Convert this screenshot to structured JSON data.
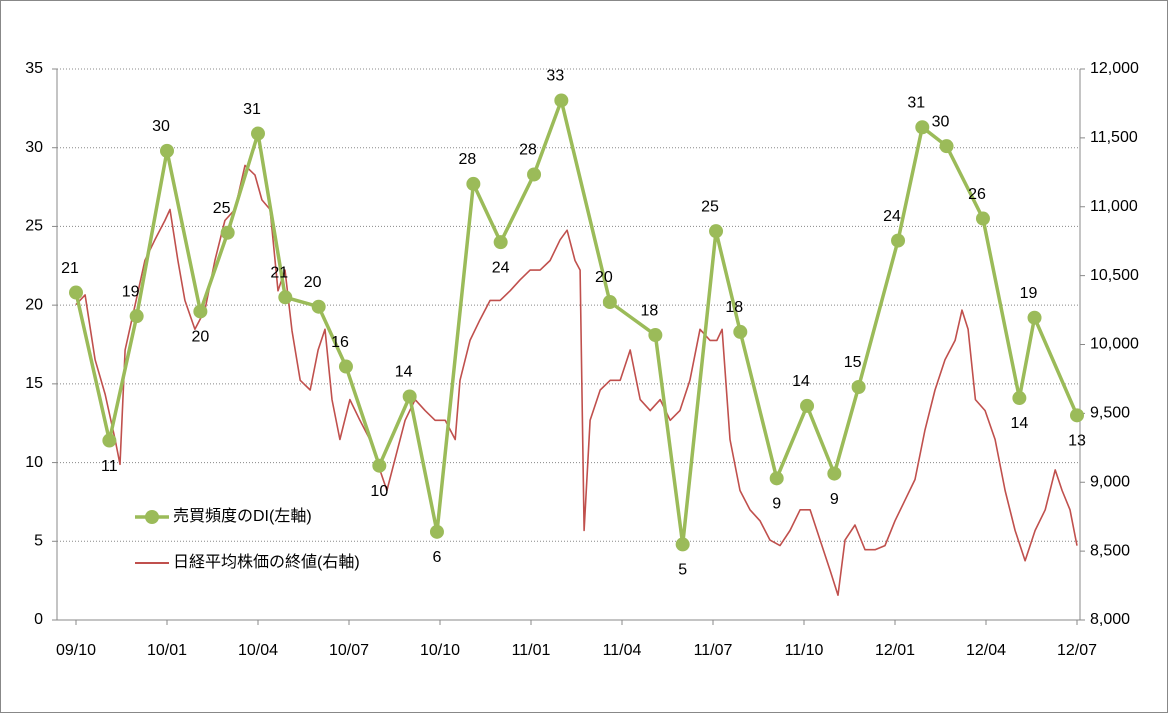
{
  "chart_data": {
    "type": "line",
    "xlim": [
      0,
      33
    ],
    "xticks": [
      {
        "value": 0,
        "label": "09/10"
      },
      {
        "value": 3,
        "label": "10/01"
      },
      {
        "value": 6,
        "label": "10/04"
      },
      {
        "value": 9,
        "label": "10/07"
      },
      {
        "value": 12,
        "label": "10/10"
      },
      {
        "value": 15,
        "label": "11/01"
      },
      {
        "value": 18,
        "label": "11/04"
      },
      {
        "value": 21,
        "label": "11/07"
      },
      {
        "value": 24,
        "label": "11/10"
      },
      {
        "value": 27,
        "label": "12/01"
      },
      {
        "value": 30,
        "label": "12/04"
      },
      {
        "value": 33,
        "label": "12/07"
      }
    ],
    "ylim": [
      0,
      35
    ],
    "yticks": [
      0,
      5,
      10,
      15,
      20,
      25,
      30,
      35
    ],
    "y2lim": [
      8000,
      12000
    ],
    "y2ticks": [
      {
        "value": 8000,
        "label": "8,000"
      },
      {
        "value": 8500,
        "label": "8,500"
      },
      {
        "value": 9000,
        "label": "9,000"
      },
      {
        "value": 9500,
        "label": "9,500"
      },
      {
        "value": 10000,
        "label": "10,000"
      },
      {
        "value": 10500,
        "label": "10,500"
      },
      {
        "value": 11000,
        "label": "11,000"
      },
      {
        "value": 11500,
        "label": "11,500"
      },
      {
        "value": 12000,
        "label": "12,000"
      }
    ],
    "grid": true,
    "legend": "lower left",
    "series": [
      {
        "name": "売買頻度のDI(左軸)",
        "color": "#9bbb59",
        "x": [
          0,
          1.1,
          2.0,
          3.0,
          4.1,
          5.0,
          6.0,
          6.9,
          8.0,
          8.9,
          10.0,
          11.0,
          11.9,
          13.1,
          14.0,
          15.1,
          16.0,
          17.6,
          19.1,
          20.0,
          21.1,
          21.9,
          23.1,
          24.1,
          25.0,
          25.8,
          27.1,
          27.9,
          28.7,
          29.9,
          31.1,
          31.6,
          33
        ],
        "values": [
          20.8,
          11.4,
          19.3,
          29.8,
          19.6,
          24.6,
          30.9,
          20.5,
          19.9,
          16.1,
          9.8,
          14.2,
          5.6,
          27.7,
          24.0,
          28.3,
          33.0,
          20.2,
          18.1,
          4.8,
          24.7,
          18.3,
          9.0,
          13.6,
          9.3,
          14.8,
          24.1,
          31.3,
          30.1,
          25.5,
          14.1,
          19.2,
          13.0
        ],
        "value_labels": [
          "21",
          "11",
          "19",
          "30",
          "20",
          "25",
          "31",
          "21",
          "20",
          "16",
          "10",
          "14",
          "6",
          "28",
          "24",
          "28",
          "33",
          "20",
          "18",
          "5",
          "25",
          "18",
          "9",
          "14",
          "9",
          "15",
          "24",
          "31",
          "30",
          "26",
          "14",
          "19",
          "13"
        ]
      },
      {
        "name": "日経平均株価の終値(右軸)",
        "color": "#c0504d",
        "axis": "y2",
        "x": [
          0,
          0.3,
          0.63,
          0.96,
          1.29,
          1.45,
          1.62,
          1.95,
          2.27,
          2.6,
          2.93,
          3.1,
          3.36,
          3.59,
          3.92,
          4.25,
          4.58,
          4.91,
          5.24,
          5.57,
          5.9,
          6.13,
          6.4,
          6.66,
          6.89,
          7.12,
          7.39,
          7.72,
          7.98,
          8.21,
          8.44,
          8.7,
          9.03,
          9.36,
          9.69,
          10.02,
          10.25,
          10.52,
          10.85,
          11.18,
          11.51,
          11.84,
          12.17,
          12.5,
          12.66,
          12.99,
          13.32,
          13.65,
          13.98,
          14.31,
          14.64,
          14.97,
          15.3,
          15.63,
          15.96,
          16.19,
          16.45,
          16.62,
          16.75,
          16.95,
          17.28,
          17.61,
          17.94,
          18.27,
          18.6,
          18.93,
          19.26,
          19.59,
          19.91,
          20.24,
          20.57,
          20.9,
          21.13,
          21.3,
          21.56,
          21.89,
          22.22,
          22.55,
          22.88,
          23.21,
          23.54,
          23.87,
          24.2,
          24.53,
          24.86,
          25.12,
          25.35,
          25.68,
          26.01,
          26.34,
          26.67,
          27.0,
          27.33,
          27.66,
          27.99,
          28.32,
          28.65,
          28.98,
          29.21,
          29.41,
          29.65,
          29.97,
          30.3,
          30.63,
          30.96,
          31.29,
          31.62,
          31.95,
          32.28,
          32.51,
          32.77,
          33.0
        ],
        "values": [
          10290,
          10360,
          9890,
          9640,
          9310,
          9130,
          9960,
          10290,
          10610,
          10760,
          10900,
          10980,
          10610,
          10320,
          10110,
          10250,
          10610,
          10900,
          10980,
          11300,
          11230,
          11050,
          10980,
          10390,
          10540,
          10100,
          9740,
          9670,
          9960,
          10110,
          9600,
          9310,
          9600,
          9450,
          9310,
          9090,
          8940,
          9170,
          9450,
          9600,
          9520,
          9450,
          9450,
          9310,
          9740,
          10030,
          10180,
          10320,
          10320,
          10390,
          10470,
          10540,
          10540,
          10610,
          10760,
          10830,
          10610,
          10540,
          8650,
          9450,
          9670,
          9740,
          9740,
          9960,
          9600,
          9520,
          9600,
          9450,
          9520,
          9740,
          10110,
          10030,
          10030,
          10110,
          9310,
          8940,
          8800,
          8720,
          8580,
          8540,
          8650,
          8800,
          8800,
          8580,
          8360,
          8180,
          8580,
          8690,
          8510,
          8510,
          8540,
          8720,
          8870,
          9020,
          9380,
          9670,
          9890,
          10030,
          10250,
          10110,
          9600,
          9520,
          9310,
          8940,
          8650,
          8430,
          8650,
          8800,
          9090,
          8940,
          8800,
          8540
        ]
      }
    ]
  }
}
